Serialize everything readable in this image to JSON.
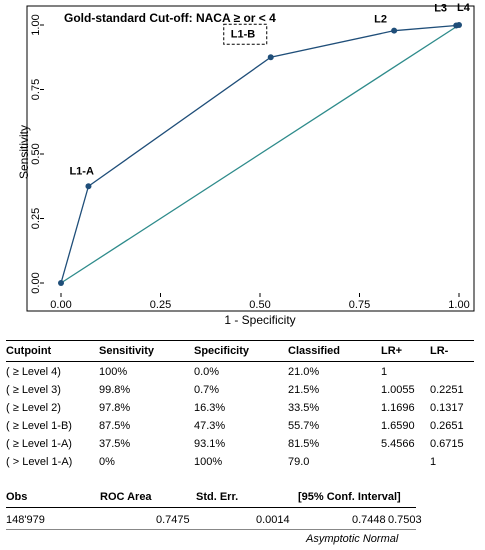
{
  "colors": {
    "line": "#1f4e79",
    "reference": "#2e8b8b",
    "marker": "#1f4e79",
    "frame": "#000000"
  },
  "chart_data": {
    "type": "line",
    "title": "Gold-standard Cut-off: NACA ≥ or < 4",
    "xlabel": "1 - Specificity",
    "ylabel": "Sensitivity",
    "xlim": [
      0,
      1
    ],
    "ylim": [
      0,
      1
    ],
    "xticks": [
      "0.00",
      "0.25",
      "0.50",
      "0.75",
      "1.00"
    ],
    "yticks": [
      "0.00",
      "0.25",
      "0.50",
      "0.75",
      "1.00"
    ],
    "grid": false,
    "series": [
      {
        "x": [
          0,
          0.069,
          0.527,
          0.837,
          0.993,
          1.0
        ],
        "y": [
          0,
          0.375,
          0.875,
          0.978,
          0.998,
          1.0
        ]
      },
      {
        "x": [
          0,
          1
        ],
        "y": [
          0,
          1
        ]
      }
    ],
    "point_labels": [
      {
        "text": "L1-A",
        "x": 0.069,
        "y": 0.375
      },
      {
        "text": "L1-B",
        "x": 0.527,
        "y": 0.875
      },
      {
        "text": "L2",
        "x": 0.837,
        "y": 0.978
      },
      {
        "text": "L3",
        "x": 0.993,
        "y": 0.998
      },
      {
        "text": "L4",
        "x": 1.0,
        "y": 1.0
      }
    ]
  },
  "table": {
    "headers": [
      "Cutpoint",
      "Sensitivity",
      "Specificity",
      "Classified",
      "LR+",
      "LR-"
    ],
    "rows": [
      [
        "( ≥ Level 4)",
        "100%",
        "0.0%",
        "21.0%",
        "1",
        ""
      ],
      [
        "( ≥ Level 3)",
        "99.8%",
        "0.7%",
        "21.5%",
        "1.0055",
        "0.2251"
      ],
      [
        "( ≥ Level 2)",
        "97.8%",
        "16.3%",
        "33.5%",
        "1.1696",
        "0.1317"
      ],
      [
        "( ≥ Level 1-B)",
        "87.5%",
        "47.3%",
        "55.7%",
        "1.6590",
        "0.2651"
      ],
      [
        "( ≥ Level 1-A)",
        "37.5%",
        "93.1%",
        "81.5%",
        "5.4566",
        "0.6715"
      ],
      [
        "( > Level 1-A)",
        "0%",
        "100%",
        "79.0",
        "",
        "1"
      ]
    ]
  },
  "summary": {
    "headers": [
      "Obs",
      "ROC Area",
      "Std. Err.",
      "[95% Conf. Interval]"
    ],
    "obs": "148'979",
    "roc_area": "0.7475",
    "std_err": "0.0014",
    "ci_low": "0.7448",
    "ci_high": "0.7503",
    "note": "Asymptotic Normal"
  }
}
